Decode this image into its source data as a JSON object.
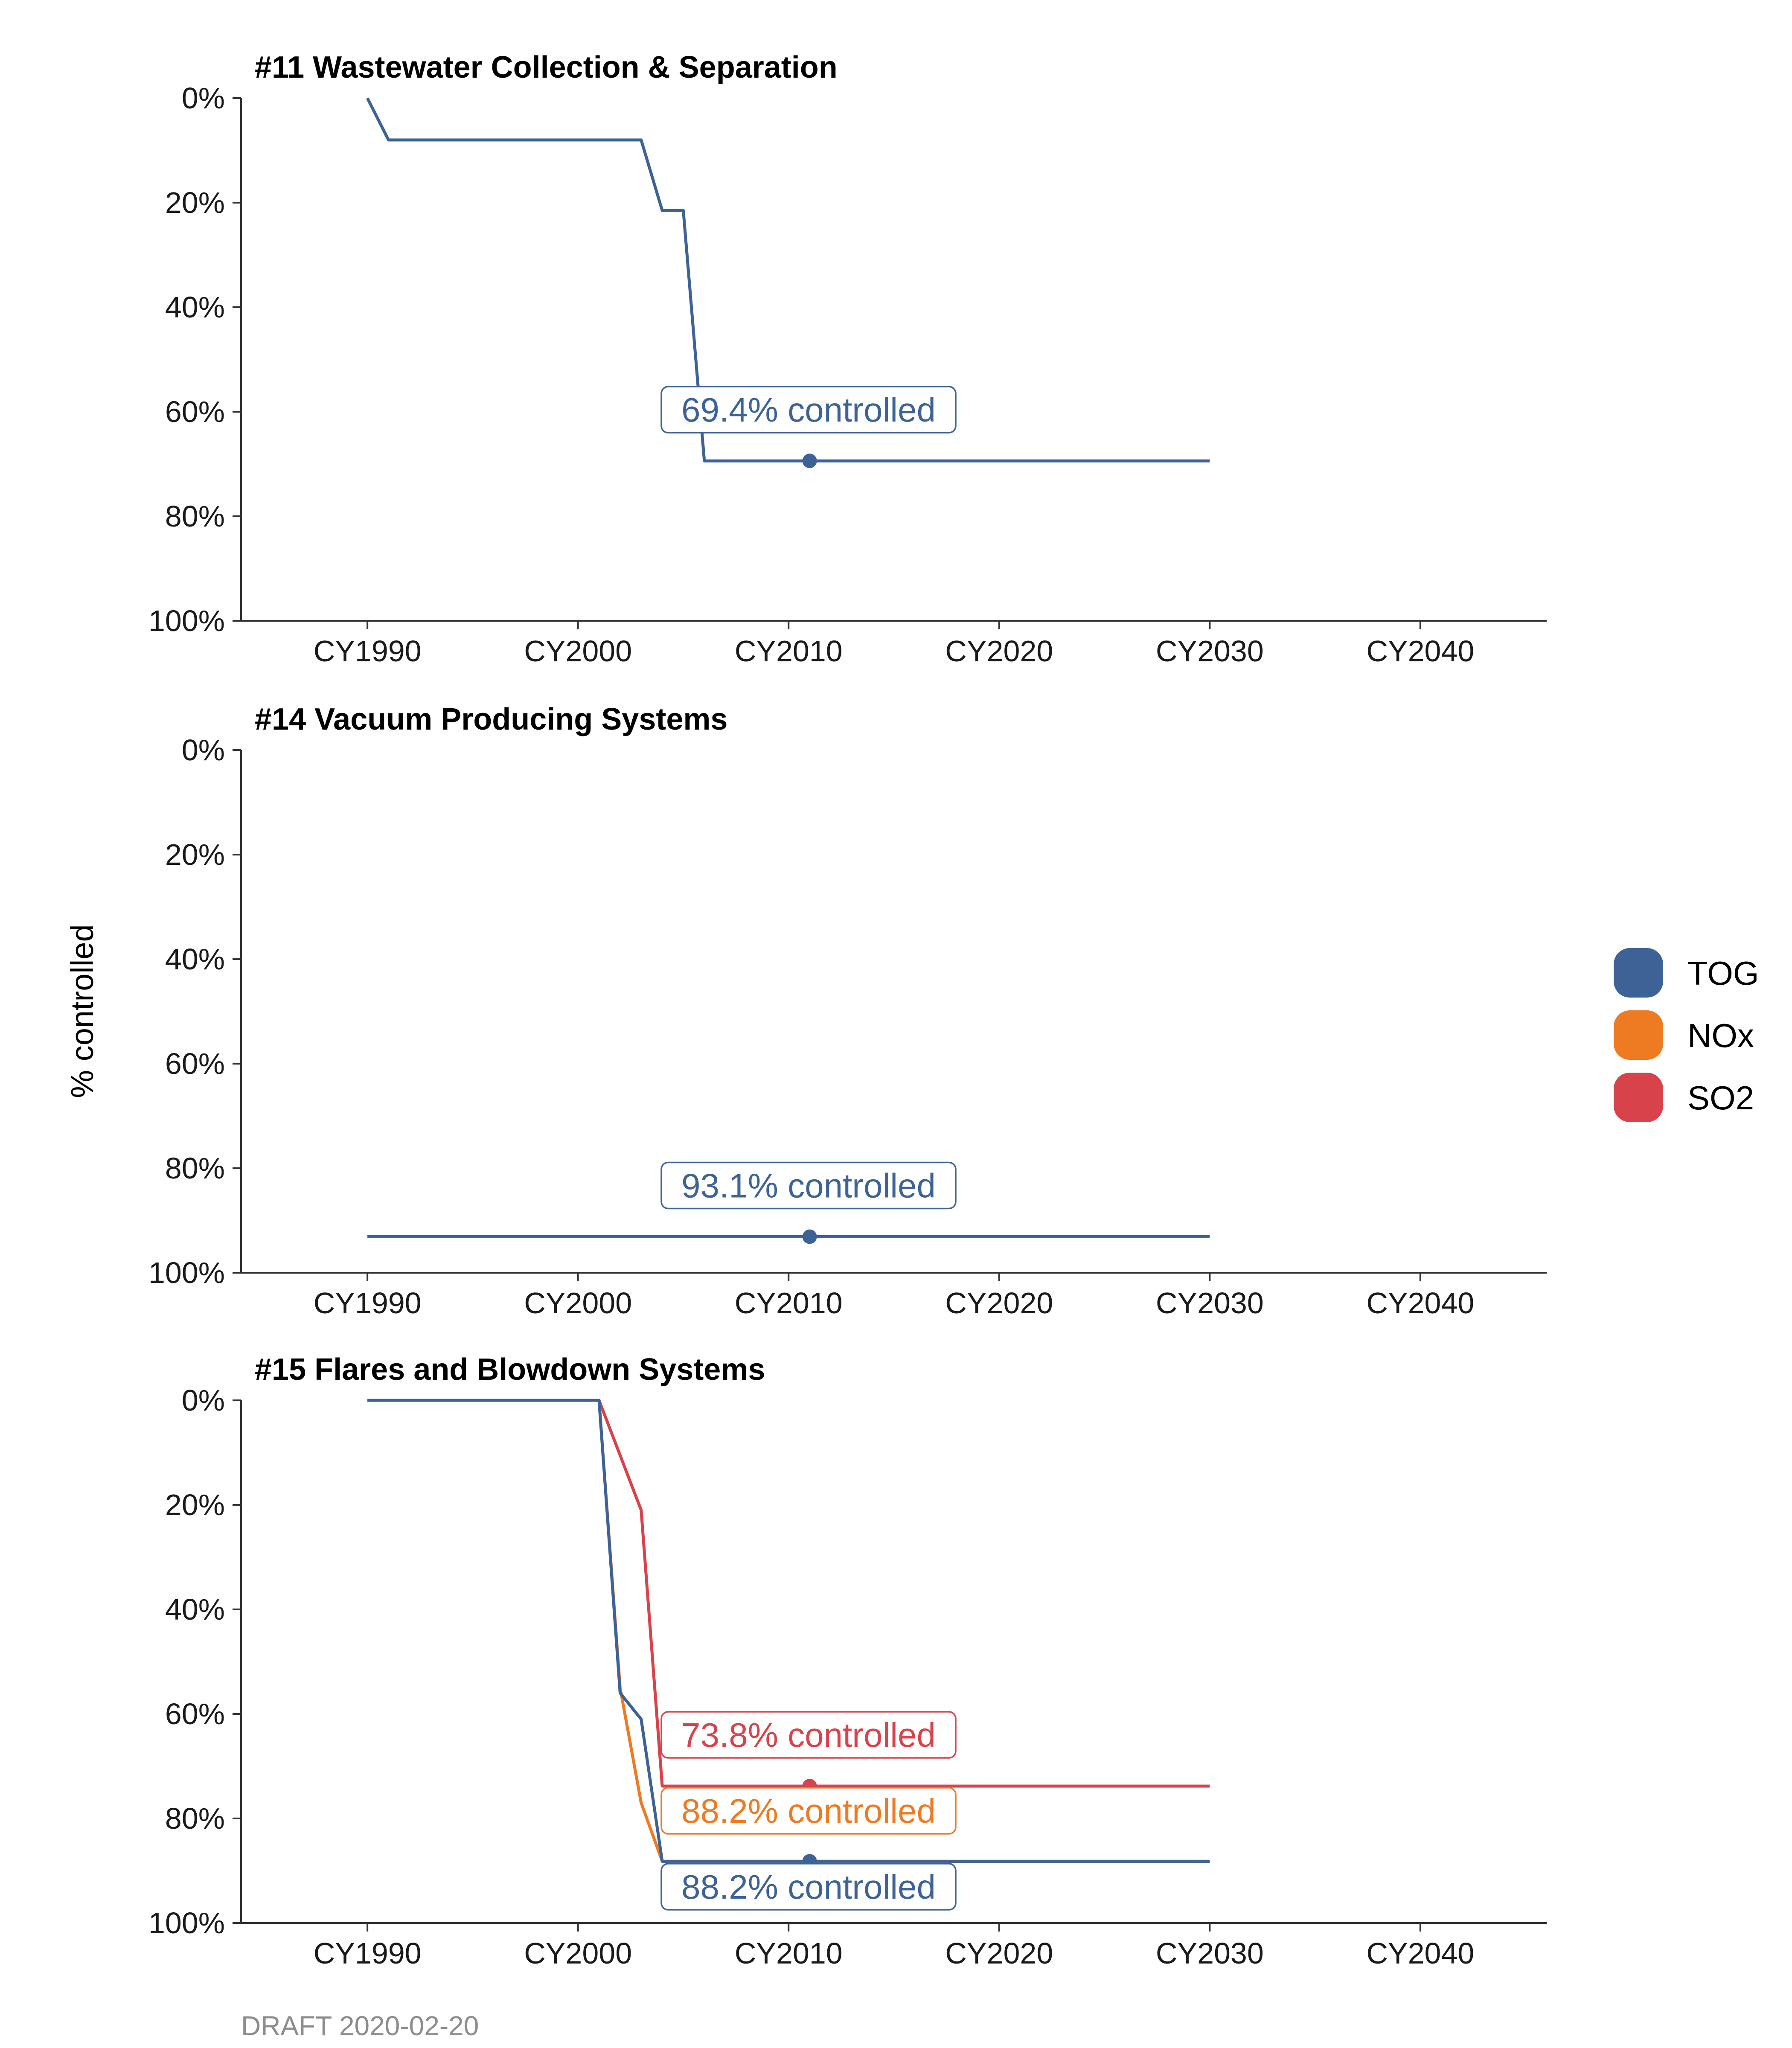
{
  "ylabel": "% controlled",
  "footer": "DRAFT 2020-02-20",
  "legend": [
    {
      "name": "TOG",
      "color": "#3d6396",
      "icon": "legend-swatch-icon"
    },
    {
      "name": "NOx",
      "color": "#ee7a22",
      "icon": "legend-swatch-icon"
    },
    {
      "name": "SO2",
      "color": "#d8434b",
      "icon": "legend-swatch-icon"
    }
  ],
  "chart_data": [
    {
      "type": "line",
      "title": "#11 Wastewater Collection & Separation",
      "xlabel": "",
      "ylabel": "% controlled",
      "xlim": [
        1984,
        2046
      ],
      "ylim": [
        0,
        100
      ],
      "y_reversed": true,
      "x_ticks": [
        1990,
        2000,
        2010,
        2020,
        2030,
        2040
      ],
      "x_tick_labels": [
        "CY1990",
        "CY2000",
        "CY2010",
        "CY2020",
        "CY2030",
        "CY2040"
      ],
      "y_ticks": [
        0,
        20,
        40,
        60,
        80,
        100
      ],
      "y_tick_labels": [
        "0%",
        "20%",
        "40%",
        "60%",
        "80%",
        "100%"
      ],
      "grid": false,
      "series": [
        {
          "name": "TOG",
          "color": "#3d6396",
          "x": [
            1990,
            1991,
            2003,
            2004,
            2005,
            2006,
            2007,
            2030
          ],
          "y": [
            0,
            8,
            8,
            21.5,
            21.5,
            69.4,
            69.4,
            69.4
          ],
          "marker_x": 2011,
          "marker_y": 69.4,
          "annotation": "69.4% controlled"
        }
      ]
    },
    {
      "type": "line",
      "title": "#14 Vacuum Producing Systems",
      "xlabel": "",
      "ylabel": "% controlled",
      "xlim": [
        1984,
        2046
      ],
      "ylim": [
        0,
        100
      ],
      "y_reversed": true,
      "x_ticks": [
        1990,
        2000,
        2010,
        2020,
        2030,
        2040
      ],
      "x_tick_labels": [
        "CY1990",
        "CY2000",
        "CY2010",
        "CY2020",
        "CY2030",
        "CY2040"
      ],
      "y_ticks": [
        0,
        20,
        40,
        60,
        80,
        100
      ],
      "y_tick_labels": [
        "0%",
        "20%",
        "40%",
        "60%",
        "80%",
        "100%"
      ],
      "grid": false,
      "series": [
        {
          "name": "TOG",
          "color": "#3d6396",
          "x": [
            1990,
            2030
          ],
          "y": [
            93.1,
            93.1
          ],
          "marker_x": 2011,
          "marker_y": 93.1,
          "annotation": "93.1% controlled"
        }
      ]
    },
    {
      "type": "line",
      "title": "#15 Flares and Blowdown Systems",
      "xlabel": "",
      "ylabel": "% controlled",
      "xlim": [
        1984,
        2046
      ],
      "ylim": [
        0,
        100
      ],
      "y_reversed": true,
      "x_ticks": [
        1990,
        2000,
        2010,
        2020,
        2030,
        2040
      ],
      "x_tick_labels": [
        "CY1990",
        "CY2000",
        "CY2010",
        "CY2020",
        "CY2030",
        "CY2040"
      ],
      "y_ticks": [
        0,
        20,
        40,
        60,
        80,
        100
      ],
      "y_tick_labels": [
        "0%",
        "20%",
        "40%",
        "60%",
        "80%",
        "100%"
      ],
      "grid": false,
      "series": [
        {
          "name": "SO2",
          "color": "#d8434b",
          "x": [
            1990,
            2001,
            2003,
            2004,
            2030
          ],
          "y": [
            0,
            0,
            21,
            73.8,
            73.8
          ],
          "marker_x": 2011,
          "marker_y": 73.8,
          "annotation": "73.8% controlled"
        },
        {
          "name": "NOx",
          "color": "#ee7a22",
          "x": [
            1990,
            2001,
            2002,
            2003,
            2004,
            2030
          ],
          "y": [
            0,
            0,
            55,
            77,
            88.2,
            88.2
          ],
          "marker_x": 2011,
          "marker_y": 88.2,
          "annotation": "88.2% controlled"
        },
        {
          "name": "TOG",
          "color": "#3d6396",
          "x": [
            1990,
            2001,
            2002,
            2003,
            2004,
            2030
          ],
          "y": [
            0,
            0,
            56,
            61,
            88.2,
            88.2
          ],
          "marker_x": 2011,
          "marker_y": 88.2,
          "annotation": "88.2% controlled"
        }
      ]
    }
  ]
}
